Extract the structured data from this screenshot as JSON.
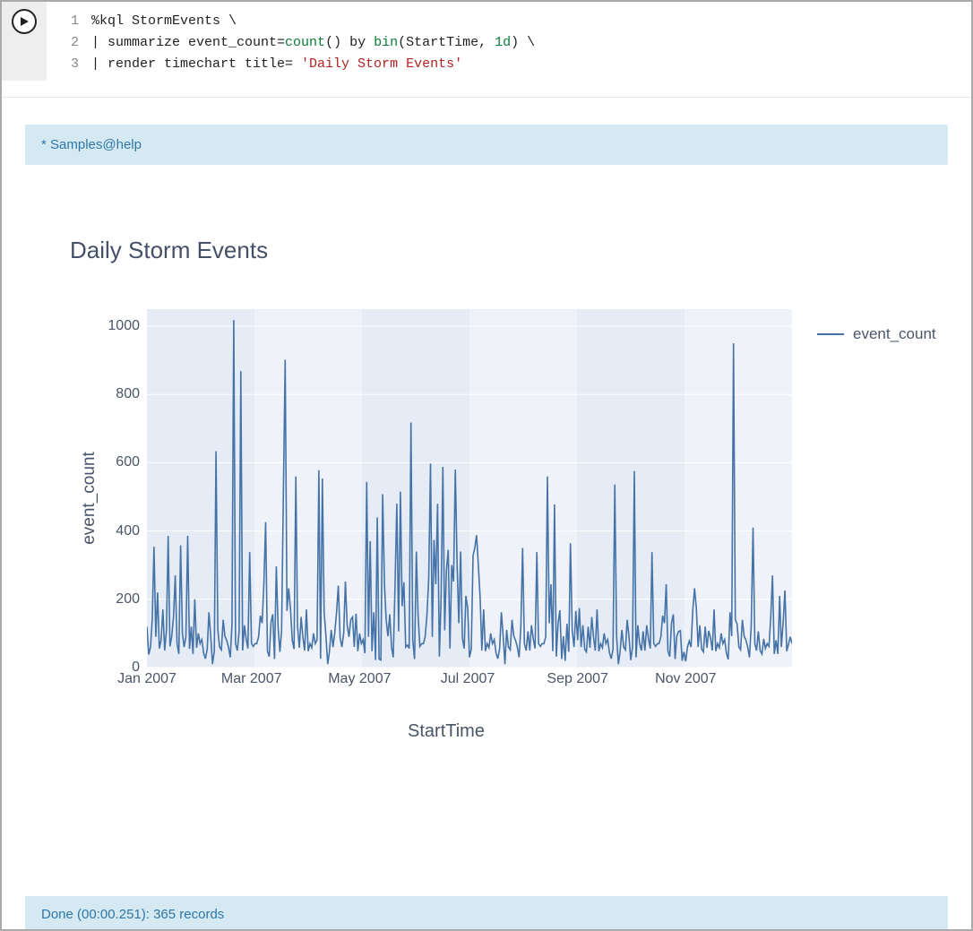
{
  "code": {
    "lines": [
      {
        "n": 1,
        "segments": [
          {
            "cls": "tk-plain",
            "t": "%kql StormEvents \\"
          }
        ]
      },
      {
        "n": 2,
        "segments": [
          {
            "cls": "tk-plain",
            "t": "| summarize event_count="
          },
          {
            "cls": "tk-fn",
            "t": "count"
          },
          {
            "cls": "tk-plain",
            "t": "() by "
          },
          {
            "cls": "tk-fn",
            "t": "bin"
          },
          {
            "cls": "tk-plain",
            "t": "(StartTime, "
          },
          {
            "cls": "tk-num",
            "t": "1d"
          },
          {
            "cls": "tk-plain",
            "t": ") \\"
          }
        ]
      },
      {
        "n": 3,
        "segments": [
          {
            "cls": "tk-plain",
            "t": "| render timechart title= "
          },
          {
            "cls": "tk-str",
            "t": "'Daily Storm Events'"
          }
        ]
      }
    ]
  },
  "top_banner_star": " * ",
  "top_banner_text": "Samples@help",
  "chart": {
    "type": "line",
    "title": "Daily Storm Events",
    "title_fontsize": 26,
    "title_color": "#455067",
    "xlabel": "StartTime",
    "ylabel": "event_count",
    "label_fontsize": 19,
    "label_color": "#4a5568",
    "background_color": "#e6ecf5",
    "grid_color": "#ffffff",
    "line_color": "#4573a7",
    "line_width": 1.6,
    "legend_label": "event_count",
    "ylim": [
      0,
      1050
    ],
    "yticks": [
      0,
      200,
      400,
      600,
      800,
      1000
    ],
    "xticks": [
      "Jan 2007",
      "Mar 2007",
      "May 2007",
      "Jul 2007",
      "Sep 2007",
      "Nov 2007"
    ],
    "xtick_positions_days": [
      0,
      59,
      120,
      181,
      243,
      304
    ],
    "n_days": 365,
    "values": [
      120,
      38,
      60,
      140,
      354,
      90,
      220,
      56,
      80,
      170,
      50,
      110,
      386,
      62,
      92,
      150,
      270,
      70,
      40,
      358,
      100,
      60,
      90,
      386,
      55,
      120,
      40,
      200,
      58,
      100,
      70,
      82,
      42,
      26,
      54,
      162,
      92,
      10,
      48,
      634,
      110,
      60,
      52,
      140,
      92,
      80,
      60,
      30,
      124,
      1018,
      70,
      50,
      106,
      868,
      50,
      124,
      84,
      56,
      338,
      70,
      62,
      70,
      70,
      90,
      152,
      130,
      244,
      426,
      48,
      32,
      133,
      156,
      25,
      296,
      118,
      46,
      108,
      512,
      902,
      166,
      232,
      174,
      80,
      54,
      560,
      120,
      58,
      148,
      88,
      50,
      170,
      48,
      70,
      58,
      100,
      70,
      82,
      578,
      26,
      554,
      162,
      92,
      10,
      48,
      110,
      60,
      104,
      160,
      240,
      88,
      60,
      100,
      252,
      124,
      90,
      140,
      148,
      60,
      158,
      48,
      100,
      70,
      82,
      42,
      544,
      90,
      370,
      48,
      162,
      22,
      440,
      25,
      22,
      508,
      246,
      140,
      92,
      156,
      60,
      30,
      240,
      480,
      106,
      515,
      180,
      250,
      60,
      66,
      56,
      718,
      80,
      25,
      340,
      155,
      62,
      70,
      70,
      90,
      152,
      260,
      598,
      90,
      374,
      244,
      480,
      32,
      210,
      588,
      109,
      286,
      345,
      56,
      300,
      252,
      580,
      300,
      130,
      340,
      86,
      56,
      210,
      174,
      30,
      54,
      328,
      350,
      388,
      300,
      205,
      50,
      170,
      48,
      70,
      58,
      100,
      70,
      82,
      42,
      26,
      54,
      162,
      92,
      10,
      110,
      60,
      52,
      140,
      92,
      80,
      60,
      30,
      124,
      350,
      70,
      50,
      106,
      50,
      124,
      84,
      56,
      338,
      70,
      62,
      70,
      70,
      90,
      560,
      130,
      244,
      48,
      478,
      32,
      130,
      168,
      25,
      92,
      20,
      128,
      46,
      364,
      108,
      60,
      166,
      80,
      174,
      60,
      124,
      54,
      46,
      120,
      58,
      148,
      88,
      50,
      170,
      48,
      70,
      58,
      100,
      70,
      82,
      42,
      26,
      54,
      536,
      92,
      10,
      48,
      110,
      60,
      52,
      140,
      92,
      22,
      60,
      576,
      30,
      124,
      70,
      50,
      106,
      50,
      124,
      84,
      56,
      338,
      70,
      62,
      70,
      70,
      90,
      152,
      130,
      244,
      48,
      32,
      130,
      156,
      25,
      92,
      106,
      108,
      20,
      46,
      18,
      60,
      78,
      60,
      166,
      232,
      174,
      60,
      124,
      54,
      46,
      120,
      58,
      108,
      88,
      50,
      170,
      48,
      70,
      58,
      100,
      70,
      82,
      42,
      24,
      162,
      92,
      950,
      140,
      128,
      60,
      52,
      140,
      92,
      80,
      60,
      30,
      124,
      410,
      70,
      50,
      106,
      50,
      40,
      84,
      56,
      70,
      62,
      150,
      270,
      40,
      80,
      40,
      210,
      60,
      132,
      226,
      48,
      68,
      90,
      70
    ]
  },
  "footer_text": "Done (00:00.251): 365 records"
}
